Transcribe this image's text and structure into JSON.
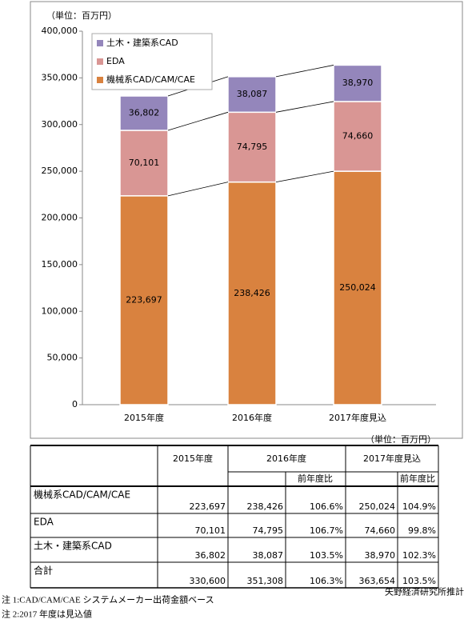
{
  "chart_data": {
    "type": "stacked_bar",
    "ylabel": "（単位：百万円）",
    "categories": [
      "2015年度",
      "2016年度",
      "2017年度見込"
    ],
    "series": [
      {
        "name": "機械系CAD/CAM/CAE",
        "color": "#d9823f",
        "values": [
          223697,
          238426,
          250024
        ],
        "value_labels": [
          "223,697",
          "238,426",
          "250,024"
        ]
      },
      {
        "name": "EDA",
        "color": "#d99694",
        "values": [
          70101,
          74795,
          74660
        ],
        "value_labels": [
          "70,101",
          "74,795",
          "74,660"
        ]
      },
      {
        "name": "土木・建築系CAD",
        "color": "#9486bb",
        "values": [
          36802,
          38087,
          38970
        ],
        "value_labels": [
          "36,802",
          "38,087",
          "38,970"
        ]
      }
    ],
    "ylim": [
      0,
      400000
    ],
    "yticks": [
      0,
      {
        "value": 50000,
        "label": "50,000"
      },
      {
        "value": 100000,
        "label": "100,000"
      },
      {
        "value": 150000,
        "label": "150,000"
      },
      {
        "value": 200000,
        "label": "200,000"
      },
      {
        "value": 250000,
        "label": "250,000"
      },
      {
        "value": 300000,
        "label": "300,000"
      },
      {
        "value": 350000,
        "label": "350,000"
      },
      {
        "value": 400000,
        "label": "400,000"
      }
    ],
    "legend": "upper left",
    "grid": false
  },
  "table": {
    "unit": "（単位：百万円）",
    "columns": [
      "2015年度",
      "2016年度",
      "2017年度見込"
    ],
    "subcolumns": [
      "前年度比",
      "前年度比"
    ],
    "rows": [
      [
        "機械系CAD/CAM/CAE",
        "223,697",
        "238,426",
        "106.6%",
        "250,024",
        "104.9%"
      ],
      [
        "EDA",
        "70,101",
        "74,795",
        "106.7%",
        "74,660",
        "99.8%"
      ],
      [
        "土木・建築系CAD",
        "36,802",
        "38,087",
        "103.5%",
        "38,970",
        "102.3%"
      ],
      [
        "合計",
        "330,600",
        "351,308",
        "106.3%",
        "363,654",
        "103.5%"
      ]
    ],
    "source": "矢野経済研究所推計"
  },
  "notes": [
    "注 1:CAD/CAM/CAE システムメーカー出荷金額ベース",
    "注 2:2017 年度は見込値"
  ]
}
